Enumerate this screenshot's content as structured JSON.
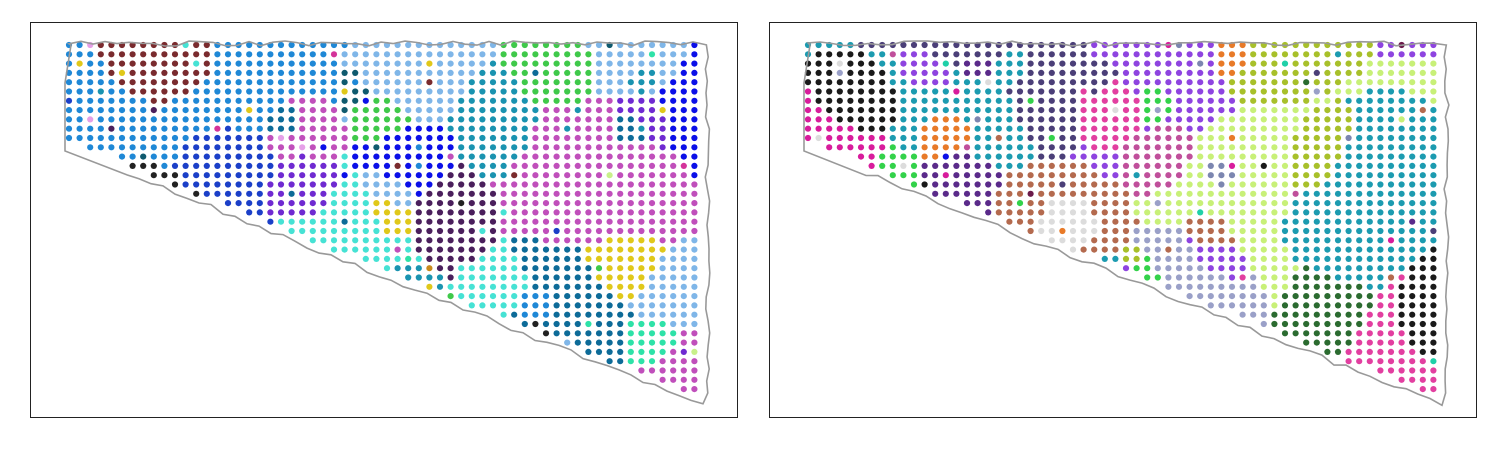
{
  "figure": {
    "panels": [
      {
        "id": "left",
        "seed": 7,
        "palette": [
          "#c04fbb",
          "#7fb6e8",
          "#1f88d6",
          "#1a93b0",
          "#0d6b98",
          "#46e2d4",
          "#1b3fc8",
          "#0b0fe8",
          "#4a1f5c",
          "#c8f08a",
          "#e6a0e8",
          "#2ee2a8",
          "#0f5a6e",
          "#c98a1c",
          "#d4339a",
          "#7a2b2e",
          "#6f2ad1",
          "#222222",
          "#3fc94a",
          "#e0c81a"
        ],
        "dominant": [
          "#c04fbb",
          "#7fb6e8",
          "#1f88d6",
          "#c04fbb",
          "#46e2d4",
          "#0d6b98",
          "#1a93b0",
          "#7fb6e8",
          "#c04fbb",
          "#0b0fe8"
        ]
      },
      {
        "id": "right",
        "seed": 19,
        "palette": [
          "#4b3f78",
          "#c8f078",
          "#5a2a8a",
          "#dcdcdc",
          "#b46a4e",
          "#1fd0a8",
          "#1c9bb0",
          "#e23fa0",
          "#8e44e0",
          "#2b6b30",
          "#a8c02a",
          "#e87a28",
          "#0b0fe8",
          "#7c86b0",
          "#c04f9b",
          "#33d24a",
          "#6b1a4a",
          "#1a1a1a",
          "#9aa0c8",
          "#d81c9c"
        ],
        "dominant": [
          "#4b3f78",
          "#4b3f78",
          "#8e44e0",
          "#c8f078",
          "#dcdcdc",
          "#b46a4e",
          "#4b3f78",
          "#1c9bb0",
          "#5a2a8a",
          "#7c86b0"
        ]
      }
    ]
  }
}
